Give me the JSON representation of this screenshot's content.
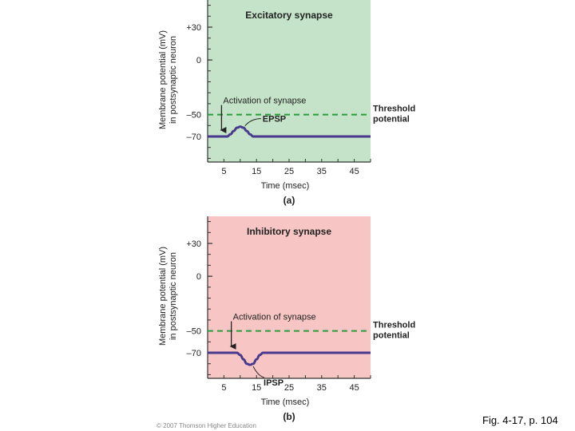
{
  "chart_data": [
    {
      "type": "line",
      "panel_label": "(a)",
      "title": "Excitatory synapse",
      "xlabel": "Time (msec)",
      "ylabel": [
        "Membrane potential (mV)",
        "in postsynaptic neuron"
      ],
      "xlim": [
        0,
        50
      ],
      "ylim": [
        -90,
        52
      ],
      "xticks": [
        5,
        15,
        25,
        35,
        45
      ],
      "yticks": [
        {
          "value": 30,
          "label": "+30"
        },
        {
          "value": 0,
          "label": "0"
        },
        {
          "value": -50,
          "label": "–50"
        },
        {
          "value": -70,
          "label": "–70"
        }
      ],
      "background": "#c4e3c8",
      "threshold": {
        "value": -50,
        "label": [
          "Threshold",
          "potential"
        ],
        "color": "#2a9d3e"
      },
      "stimulus": {
        "x": 5,
        "label": "Activation of synapse"
      },
      "series": [
        {
          "color": "#4a3a8f",
          "x": [
            0,
            5,
            6,
            7,
            8,
            9,
            10,
            11,
            12,
            13,
            14,
            50
          ],
          "y": [
            -70,
            -70,
            -70,
            -68,
            -65,
            -62,
            -61,
            -62,
            -65,
            -68,
            -70,
            -70
          ],
          "annotation": {
            "label": "EPSP",
            "x": 10
          }
        }
      ]
    },
    {
      "type": "line",
      "panel_label": "(b)",
      "title": "Inhibitory synapse",
      "xlabel": "Time (msec)",
      "ylabel": [
        "Membrane potential (mV)",
        "in postsynaptic neuron"
      ],
      "xlim": [
        0,
        50
      ],
      "ylim": [
        -90,
        52
      ],
      "xticks": [
        5,
        15,
        25,
        35,
        45
      ],
      "yticks": [
        {
          "value": 30,
          "label": "+30"
        },
        {
          "value": 0,
          "label": "0"
        },
        {
          "value": -50,
          "label": "–50"
        },
        {
          "value": -70,
          "label": "–70"
        }
      ],
      "background": "#f7c6c4",
      "threshold": {
        "value": -50,
        "label": [
          "Threshold",
          "potential"
        ],
        "color": "#2a9d3e"
      },
      "stimulus": {
        "x": 8,
        "label": "Activation of synapse"
      },
      "series": [
        {
          "color": "#4a3a8f",
          "x": [
            0,
            8,
            9,
            10,
            11,
            12,
            13,
            14,
            15,
            16,
            17,
            50
          ],
          "y": [
            -70,
            -70,
            -70,
            -72,
            -76,
            -80,
            -81,
            -80,
            -76,
            -72,
            -70,
            -70
          ],
          "annotation": {
            "label": "IPSP",
            "x": 12
          }
        }
      ]
    }
  ],
  "footer": {
    "copyright": "© 2007 Thomson Higher Education",
    "caption": "Fig. 4-17, p. 104"
  }
}
